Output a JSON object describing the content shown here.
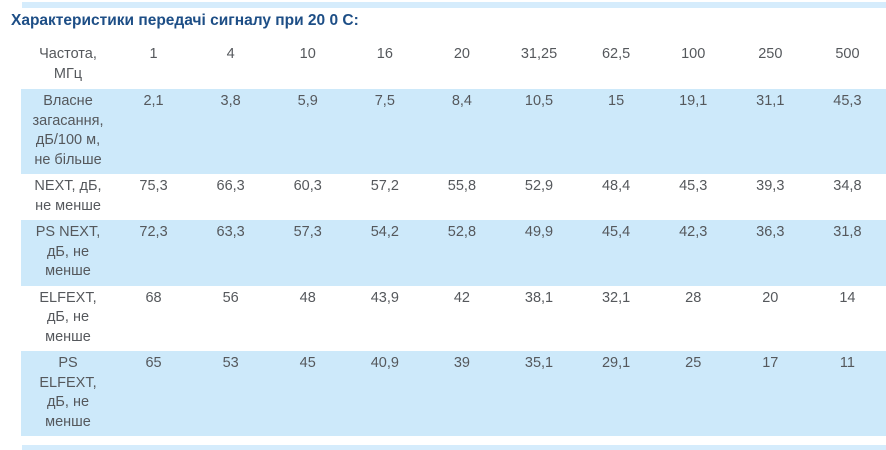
{
  "title": "Характеристики передачі сигналу при 20 0 С:",
  "table": {
    "frequency_label": "Частота,\nМГц",
    "frequencies": [
      "1",
      "4",
      "10",
      "16",
      "20",
      "31,25",
      "62,5",
      "100",
      "250",
      "500"
    ],
    "rows": [
      {
        "label": "Власне\nзагасання,\nдБ/100 м,\nне більше",
        "values": [
          "2,1",
          "3,8",
          "5,9",
          "7,5",
          "8,4",
          "10,5",
          "15",
          "19,1",
          "31,1",
          "45,3"
        ]
      },
      {
        "label": "NEXT, дБ,\nне менше",
        "values": [
          "75,3",
          "66,3",
          "60,3",
          "57,2",
          "55,8",
          "52,9",
          "48,4",
          "45,3",
          "39,3",
          "34,8"
        ]
      },
      {
        "label": "PS NEXT,\nдБ, не\nменше",
        "values": [
          "72,3",
          "63,3",
          "57,3",
          "54,2",
          "52,8",
          "49,9",
          "45,4",
          "42,3",
          "36,3",
          "31,8"
        ]
      },
      {
        "label": "ELFEXT,\nдБ, не\nменше",
        "values": [
          "68",
          "56",
          "48",
          "43,9",
          "42",
          "38,1",
          "32,1",
          "28",
          "20",
          "14"
        ]
      },
      {
        "label": "PS\nELFEXT,\nдБ, не\nменше",
        "values": [
          "65",
          "53",
          "45",
          "40,9",
          "39",
          "35,1",
          "29,1",
          "25",
          "17",
          "11"
        ]
      }
    ]
  },
  "colors": {
    "title": "#1d4e86",
    "row_stripe": "#cde9fa",
    "page_stripe": "#d5ecfc",
    "cell_text": "#55585c"
  },
  "chart_data": {
    "type": "table",
    "title": "Характеристики передачі сигналу при 20 0 С:",
    "columns": [
      "Частота, МГц",
      "1",
      "4",
      "10",
      "16",
      "20",
      "31,25",
      "62,5",
      "100",
      "250",
      "500"
    ],
    "rows": [
      [
        "Власне загасання, дБ/100 м, не більше",
        "2,1",
        "3,8",
        "5,9",
        "7,5",
        "8,4",
        "10,5",
        "15",
        "19,1",
        "31,1",
        "45,3"
      ],
      [
        "NEXT, дБ, не менше",
        "75,3",
        "66,3",
        "60,3",
        "57,2",
        "55,8",
        "52,9",
        "48,4",
        "45,3",
        "39,3",
        "34,8"
      ],
      [
        "PS NEXT, дБ, не менше",
        "72,3",
        "63,3",
        "57,3",
        "54,2",
        "52,8",
        "49,9",
        "45,4",
        "42,3",
        "36,3",
        "31,8"
      ],
      [
        "ELFEXT, дБ, не менше",
        "68",
        "56",
        "48",
        "43,9",
        "42",
        "38,1",
        "32,1",
        "28",
        "20",
        "14"
      ],
      [
        "PS ELFEXT, дБ, не менше",
        "65",
        "53",
        "45",
        "40,9",
        "39",
        "35,1",
        "29,1",
        "25",
        "17",
        "11"
      ]
    ]
  }
}
